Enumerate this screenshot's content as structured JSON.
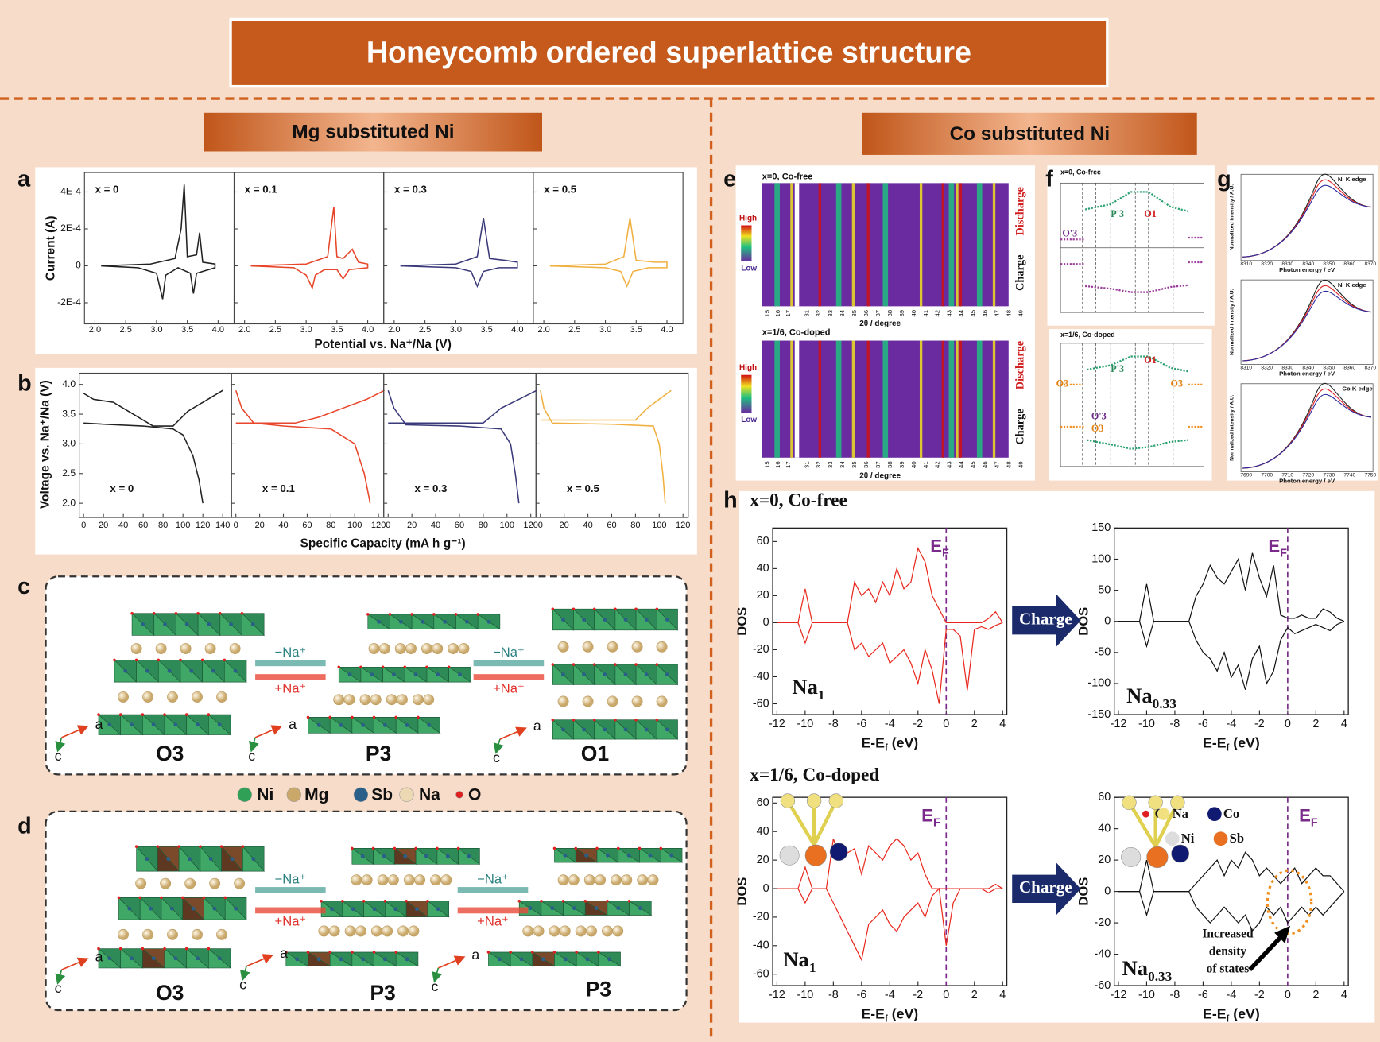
{
  "title": "Honeycomb ordered superlattice structure",
  "left_header": "Mg substituted Ni",
  "right_header": "Co substituted Ni",
  "panel_letters": [
    "a",
    "b",
    "c",
    "d",
    "e",
    "f",
    "g",
    "h"
  ],
  "cv": {
    "ylabel": "Current (A)",
    "xlabel": "Potential vs. Na⁺/Na (V)",
    "xlim": [
      1.83,
      4.26
    ],
    "ylim": [
      -0.000314,
      0.000505
    ],
    "yticks": [
      {
        "value": 0.0004,
        "label": "4E-4"
      },
      {
        "value": 0.0002,
        "label": "2E-4"
      },
      0,
      {
        "value": -0.0002,
        "label": "-2E-4"
      }
    ],
    "xticks": [
      {
        "value": 2,
        "label": "2.0"
      },
      2.5,
      {
        "value": 3,
        "label": "3.0"
      },
      3.5,
      {
        "value": 4,
        "label": "4.0"
      }
    ],
    "panels": [
      {
        "name": "x = 0",
        "color": "#222222",
        "x": [
          2.1,
          2.9,
          3.3,
          3.4,
          3.45,
          3.5,
          3.65,
          3.7,
          3.75,
          3.95,
          3.95,
          3.65,
          3.6,
          3.55,
          3.35,
          3.15,
          3.1,
          3.0,
          2.7,
          2.1
        ],
        "y": [
          0,
          1e-05,
          4e-05,
          0.0002,
          0.00044,
          5e-05,
          6e-05,
          0.00018,
          2e-05,
          1e-05,
          -1e-05,
          -4e-05,
          -0.00015,
          -4e-05,
          -1e-05,
          -5e-05,
          -0.00018,
          -4e-05,
          -1e-05,
          0
        ]
      },
      {
        "name": "x = 0.1",
        "color": "#e8462a",
        "x": [
          2.1,
          3.0,
          3.35,
          3.45,
          3.5,
          3.6,
          3.75,
          3.85,
          4.0,
          4.0,
          3.7,
          3.6,
          3.5,
          3.3,
          3.15,
          3.1,
          3.0,
          2.8,
          2.1
        ],
        "y": [
          0,
          1e-05,
          5e-05,
          0.00032,
          5e-05,
          4e-05,
          9e-05,
          2e-05,
          1e-05,
          -1e-05,
          -2e-05,
          -7e-05,
          -2e-05,
          -2e-05,
          -5e-05,
          -0.00012,
          -5e-05,
          -1e-05,
          0
        ]
      },
      {
        "name": "x = 0.3",
        "color": "#3a3a7a",
        "x": [
          2.1,
          3.0,
          3.35,
          3.45,
          3.55,
          3.8,
          4.0,
          4.0,
          3.7,
          3.45,
          3.35,
          3.25,
          3.0,
          2.1
        ],
        "y": [
          0,
          1e-05,
          5e-05,
          0.00026,
          4e-05,
          3e-05,
          2e-05,
          -1e-05,
          -1e-05,
          -3e-05,
          -0.00011,
          -3e-05,
          -1e-05,
          0
        ]
      },
      {
        "name": "x = 0.5",
        "color": "#f0b040",
        "x": [
          2.1,
          3.0,
          3.3,
          3.4,
          3.5,
          3.8,
          4.0,
          4.0,
          3.7,
          3.45,
          3.35,
          3.25,
          3.0,
          2.1
        ],
        "y": [
          0,
          1e-05,
          5e-05,
          0.00026,
          3e-05,
          2e-05,
          2e-05,
          -1e-05,
          -1e-05,
          -3e-05,
          -0.00011,
          -3e-05,
          -1e-05,
          0
        ]
      }
    ]
  },
  "gcd": {
    "ylabel": "Voltage vs. Na⁺/Na (V)",
    "xlabel": "Specific Capacity (mA h g⁻¹)",
    "ylim": [
      1.76,
      4.19
    ],
    "yticks": [
      {
        "value": 2,
        "label": "2.0"
      },
      2.5,
      {
        "value": 3,
        "label": "3.0"
      },
      3.5,
      {
        "value": 4,
        "label": "4.0"
      }
    ],
    "panels": [
      {
        "name": "x = 0",
        "color": "#222222",
        "xlim": [
          -4.4,
          148.8
        ],
        "xticks": [
          0,
          20,
          40,
          60,
          80,
          100,
          120,
          140
        ],
        "curves": [
          {
            "x": [
              0,
              10,
              30,
              50,
              70,
              90,
              105,
              120,
              140
            ],
            "y": [
              3.85,
              3.75,
              3.7,
              3.5,
              3.3,
              3.3,
              3.55,
              3.7,
              3.9
            ]
          },
          {
            "x": [
              0,
              20,
              60,
              90,
              100,
              110,
              116,
              120
            ],
            "y": [
              3.35,
              3.33,
              3.3,
              3.25,
              3.15,
              2.8,
              2.4,
              2.0
            ]
          }
        ]
      },
      {
        "name": "x = 0.1",
        "color": "#e8462a",
        "xlim": [
          -3.7,
          124.4
        ],
        "xticks": [
          0,
          20,
          40,
          60,
          80,
          100,
          120
        ],
        "curves": [
          {
            "x": [
              0,
              20,
              50,
              70,
              90,
              110,
              125
            ],
            "y": [
              3.35,
              3.35,
              3.35,
              3.45,
              3.6,
              3.75,
              3.9
            ]
          },
          {
            "x": [
              0,
              5,
              15,
              40,
              80,
              100,
              108,
              113
            ],
            "y": [
              3.9,
              3.6,
              3.35,
              3.3,
              3.25,
              3.0,
              2.5,
              2.0
            ]
          }
        ]
      },
      {
        "name": "x = 0.3",
        "color": "#3a3a7a",
        "xlim": [
          -3.7,
          124.4
        ],
        "xticks": [
          0,
          20,
          40,
          60,
          80,
          100,
          120
        ],
        "curves": [
          {
            "x": [
              0,
              40,
              80,
              95,
              110,
              125
            ],
            "y": [
              3.35,
              3.35,
              3.35,
              3.6,
              3.75,
              3.9
            ]
          },
          {
            "x": [
              0,
              5,
              15,
              60,
              95,
              103,
              107,
              110
            ],
            "y": [
              3.9,
              3.6,
              3.32,
              3.3,
              3.25,
              3.0,
              2.5,
              2.0
            ]
          }
        ]
      },
      {
        "name": "x = 0.5",
        "color": "#f0b040",
        "xlim": [
          -3.7,
          124.4
        ],
        "xticks": [
          0,
          20,
          40,
          60,
          80,
          100,
          120
        ],
        "curves": [
          {
            "x": [
              0,
              40,
              80,
              90,
              100,
              110
            ],
            "y": [
              3.4,
              3.4,
              3.4,
              3.6,
              3.75,
              3.9
            ]
          },
          {
            "x": [
              0,
              3,
              10,
              60,
              95,
              100,
              103,
              105
            ],
            "y": [
              3.9,
              3.6,
              3.35,
              3.33,
              3.3,
              3.0,
              2.5,
              2.0
            ]
          }
        ]
      }
    ]
  },
  "structures": {
    "c": [
      "O3",
      "P3",
      "O1"
    ],
    "d": [
      "O3",
      "P3",
      "P3"
    ],
    "axis_a": "a",
    "axis_c": "c",
    "remove": "−Na⁺",
    "insert": "+Na⁺"
  },
  "legend": [
    {
      "name": "Ni",
      "color": "#2fa055"
    },
    {
      "name": "Mg",
      "color": "#c9a86a"
    },
    {
      "name": "Sb",
      "color": "#2a5f8a"
    },
    {
      "name": "Na",
      "color": "#ecd9b4"
    },
    {
      "name": "O",
      "color": "#e02020"
    }
  ],
  "panel_e": {
    "top": "x=0, Co-free",
    "bottom": "x=1/6, Co-doped",
    "high": "High",
    "low": "Low",
    "discharge": "Discharge",
    "charge": "Charge",
    "xlabel": "2θ / degree",
    "xticks": [
      15,
      16,
      17,
      31,
      32,
      33,
      34,
      35,
      36,
      37,
      38,
      39,
      40,
      41,
      42,
      43,
      44,
      45,
      46,
      47,
      48,
      49
    ]
  },
  "panel_f": {
    "top": "x=0, Co-free",
    "bottom": "x=1/6, Co-doped",
    "top_phases": [
      "O'3",
      "P'3",
      "O1"
    ],
    "bottom_phases": [
      "O3",
      "P'3",
      "O1",
      "O3",
      "O'3",
      "O3"
    ]
  },
  "panel_g": {
    "edges": [
      "Ni K edge",
      "Ni K edge",
      "Co K edge"
    ],
    "xlabel": "Photon energy / eV",
    "ylabel": "Normalized intensity / A.U.",
    "ni_ticks": [
      8310,
      8320,
      8330,
      8340,
      8350,
      8360,
      8370
    ],
    "co_ticks": [
      7690,
      7700,
      7710,
      7720,
      7730,
      7740,
      7750
    ]
  },
  "dos": {
    "top_heading": "x=0, Co-free",
    "bottom_heading": "x=1/6, Co-doped",
    "ylabel": "DOS",
    "xlabel": [
      {
        "t": "E-E"
      },
      {
        "t": "f",
        "sub": true
      },
      {
        "t": " (eV)"
      }
    ],
    "ef": [
      {
        "t": "E"
      },
      {
        "t": "F",
        "sub": true
      }
    ],
    "arrow": "Charge",
    "xlim": [
      -12.3,
      4.3
    ],
    "xticks": [
      -12,
      -10,
      -8,
      -6,
      -4,
      -2,
      0,
      2,
      4
    ],
    "x": [
      -12,
      -11.5,
      -11,
      -10.5,
      -10,
      -9.5,
      -9,
      -8.5,
      -8,
      -7.5,
      -7,
      -6.5,
      -6,
      -5.5,
      -5,
      -4.5,
      -4,
      -3.5,
      -3,
      -2.5,
      -2,
      -1.5,
      -1,
      -0.5,
      0,
      0.5,
      1,
      1.5,
      2,
      2.5,
      3,
      3.5,
      4
    ],
    "plots": [
      {
        "color": "#e8281e",
        "ylim": [
          -68,
          70
        ],
        "yticks": [
          60,
          40,
          20,
          0,
          -20,
          -40,
          -60
        ],
        "label": [
          {
            "t": "Na"
          },
          {
            "t": "1",
            "sub": true
          }
        ],
        "up": [
          0,
          0,
          0,
          0,
          25,
          0,
          0,
          0,
          0,
          0,
          0,
          30,
          20,
          25,
          15,
          30,
          20,
          40,
          25,
          30,
          55,
          45,
          20,
          10,
          0,
          0,
          0,
          0,
          0,
          0,
          3,
          8,
          0
        ],
        "down": [
          0,
          0,
          0,
          0,
          -15,
          0,
          0,
          0,
          0,
          0,
          0,
          -20,
          -15,
          -25,
          -20,
          -15,
          -30,
          -25,
          -20,
          -30,
          -45,
          -20,
          -35,
          -60,
          -5,
          -5,
          -10,
          -50,
          -5,
          -3,
          -5,
          -2,
          0
        ]
      },
      {
        "color": "#111111",
        "ylim": [
          -150,
          150
        ],
        "yticks": [
          150,
          100,
          50,
          0,
          -50,
          -100,
          -150
        ],
        "label": [
          {
            "t": "Na"
          },
          {
            "t": "0.33",
            "sub": true
          }
        ],
        "up": [
          0,
          0,
          0,
          0,
          60,
          0,
          0,
          0,
          0,
          0,
          0,
          40,
          60,
          90,
          70,
          60,
          80,
          100,
          50,
          110,
          70,
          40,
          90,
          10,
          5,
          5,
          10,
          5,
          5,
          20,
          15,
          5,
          0
        ],
        "down": [
          0,
          0,
          0,
          0,
          -40,
          0,
          0,
          0,
          0,
          0,
          0,
          -30,
          -50,
          -60,
          -80,
          -50,
          -90,
          -70,
          -110,
          -60,
          -40,
          -100,
          -80,
          -30,
          -10,
          -20,
          -15,
          -10,
          -5,
          -10,
          -15,
          -5,
          0
        ]
      },
      {
        "color": "#e8281e",
        "ylim": [
          -68,
          64
        ],
        "yticks": [
          60,
          40,
          20,
          0,
          -20,
          -40,
          -60
        ],
        "label": [
          {
            "t": "Na"
          },
          {
            "t": "1",
            "sub": true
          }
        ],
        "up": [
          0,
          0,
          0,
          0,
          15,
          0,
          0,
          0,
          35,
          20,
          25,
          28,
          10,
          30,
          25,
          20,
          30,
          35,
          30,
          20,
          25,
          10,
          0,
          0,
          0,
          0,
          0,
          0,
          0,
          0,
          0,
          3,
          0
        ],
        "down": [
          0,
          0,
          0,
          0,
          -10,
          0,
          0,
          0,
          -10,
          -20,
          -30,
          -40,
          -50,
          -25,
          -20,
          -15,
          -25,
          -30,
          -20,
          -15,
          -10,
          -20,
          -5,
          0,
          -40,
          -10,
          0,
          0,
          0,
          0,
          -3,
          0,
          0
        ]
      },
      {
        "color": "#111111",
        "ylim": [
          -60,
          60
        ],
        "yticks": [
          60,
          40,
          20,
          0,
          -20,
          -40,
          -60
        ],
        "label": [
          {
            "t": "Na"
          },
          {
            "t": "0.33",
            "sub": true
          }
        ],
        "up": [
          0,
          0,
          0,
          0,
          20,
          0,
          0,
          0,
          0,
          0,
          0,
          5,
          10,
          15,
          20,
          10,
          20,
          15,
          25,
          20,
          10,
          15,
          10,
          5,
          10,
          15,
          5,
          10,
          15,
          10,
          10,
          5,
          0
        ],
        "down": [
          0,
          0,
          0,
          0,
          -15,
          0,
          0,
          0,
          0,
          0,
          0,
          -10,
          -15,
          -20,
          -15,
          -10,
          -15,
          -20,
          -15,
          -25,
          -20,
          -10,
          -15,
          -10,
          -20,
          -15,
          -10,
          -15,
          -10,
          -15,
          -10,
          -5,
          0
        ]
      }
    ],
    "inset_legend": [
      "O",
      "Na",
      "Co",
      "Ni",
      "Sb"
    ],
    "note": [
      "Increased",
      "density",
      "of states"
    ]
  }
}
